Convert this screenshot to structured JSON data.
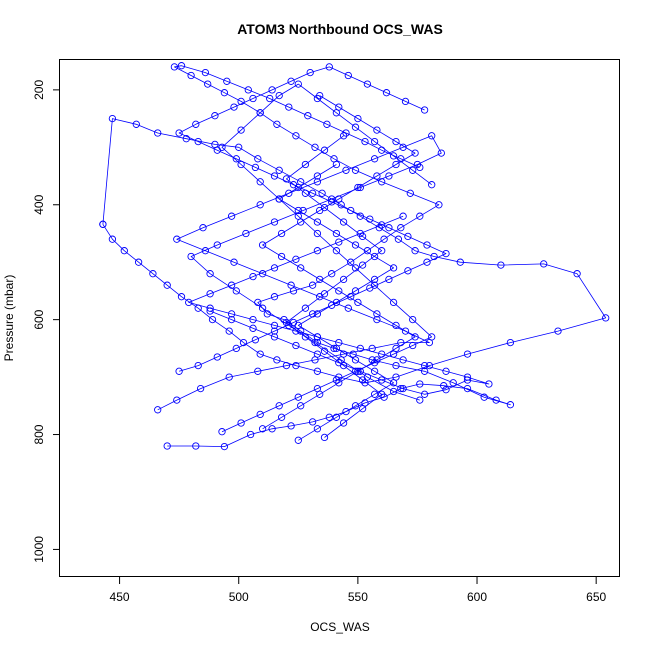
{
  "chart_data": {
    "type": "line",
    "title": "ATOM3 Northbound OCS_WAS",
    "xlabel": "OCS_WAS",
    "ylabel": "Pressure (mbar)",
    "xlim": [
      425,
      660
    ],
    "ylim": [
      1048,
      148
    ],
    "y_reversed": true,
    "x_ticks": [
      450,
      500,
      550,
      600,
      650
    ],
    "y_ticks": [
      200,
      400,
      600,
      800,
      1000
    ],
    "grid": false,
    "colors": {
      "series": "#0000ff",
      "axis": "#000000"
    },
    "series": [
      {
        "x": [
          470,
          482,
          494,
          505,
          514,
          522,
          531,
          538,
          545,
          553,
          561,
          568,
          576,
          586,
          596,
          608,
          614,
          603,
          590,
          578,
          566,
          556,
          548,
          540,
          533,
          526,
          519,
          512,
          508,
          515,
          523,
          531,
          539,
          547,
          554,
          561,
          568,
          576,
          584,
          572,
          560,
          549,
          540,
          532,
          524,
          516,
          509,
          501,
          494,
          487,
          480,
          473,
          476,
          486,
          495,
          504,
          513,
          521,
          529,
          537,
          545,
          553,
          560,
          568,
          576
        ],
        "y": [
          820,
          820,
          821,
          800,
          790,
          785,
          778,
          770,
          760,
          745,
          735,
          720,
          712,
          715,
          720,
          740,
          748,
          735,
          710,
          690,
          680,
          670,
          660,
          650,
          640,
          620,
          600,
          590,
          570,
          560,
          550,
          540,
          520,
          500,
          480,
          460,
          440,
          420,
          400,
          380,
          360,
          340,
          320,
          300,
          280,
          260,
          240,
          220,
          205,
          190,
          175,
          160,
          158,
          170,
          185,
          200,
          215,
          230,
          245,
          260,
          275,
          290,
          305,
          320,
          335
        ]
      },
      {
        "x": [
          443,
          447,
          457,
          466,
          478,
          490,
          500,
          508,
          517,
          526,
          535,
          543,
          551,
          559,
          567,
          574,
          582,
          593,
          610,
          628,
          642,
          654,
          634,
          614,
          596,
          580,
          566,
          553,
          542,
          533,
          524,
          516,
          509,
          502,
          496,
          489,
          483,
          476,
          470,
          464,
          458,
          452,
          447,
          443
        ],
        "y": [
          434,
          250,
          260,
          275,
          285,
          295,
          300,
          320,
          340,
          360,
          380,
          400,
          420,
          440,
          460,
          480,
          490,
          500,
          505,
          503,
          520,
          597,
          620,
          640,
          660,
          680,
          700,
          710,
          700,
          690,
          680,
          670,
          660,
          640,
          620,
          600,
          580,
          560,
          540,
          520,
          500,
          480,
          460,
          434
        ]
      },
      {
        "x": [
          466,
          474,
          484,
          496,
          508,
          520,
          532,
          544,
          556,
          568,
          580,
          570,
          558,
          546,
          534,
          522,
          510,
          498,
          486,
          474,
          485,
          497,
          509,
          521,
          533,
          545,
          557,
          569,
          581,
          585,
          575,
          563,
          551,
          539,
          527,
          515,
          503,
          491,
          480,
          488,
          499,
          510,
          521,
          532,
          543,
          554,
          565,
          576
        ],
        "y": [
          757,
          740,
          720,
          700,
          690,
          680,
          670,
          660,
          650,
          640,
          640,
          620,
          600,
          580,
          560,
          540,
          520,
          500,
          480,
          460,
          440,
          420,
          400,
          380,
          360,
          340,
          320,
          300,
          280,
          310,
          330,
          350,
          370,
          390,
          410,
          430,
          450,
          470,
          490,
          520,
          550,
          580,
          610,
          640,
          670,
          700,
          725,
          740
        ]
      },
      {
        "x": [
          475,
          483,
          491,
          499,
          507,
          515,
          523,
          531,
          539,
          547,
          555,
          563,
          571,
          579,
          587,
          579,
          571,
          563,
          555,
          547,
          539,
          531,
          523,
          515,
          507,
          499,
          491,
          483,
          475,
          482,
          490,
          498,
          506,
          514,
          522,
          530,
          538,
          546,
          554,
          562,
          570,
          578
        ],
        "y": [
          690,
          680,
          665,
          650,
          635,
          620,
          605,
          590,
          575,
          560,
          545,
          530,
          515,
          500,
          485,
          470,
          455,
          440,
          425,
          410,
          395,
          380,
          365,
          350,
          335,
          320,
          305,
          290,
          275,
          260,
          245,
          230,
          215,
          200,
          185,
          170,
          160,
          175,
          190,
          205,
          220,
          235
        ]
      },
      {
        "x": [
          488,
          497,
          506,
          515,
          524,
          533,
          542,
          551,
          560,
          569,
          578,
          587,
          596,
          605,
          596,
          587,
          578,
          569,
          560,
          551,
          542,
          533,
          524,
          515,
          506,
          497,
          488,
          479,
          488,
          497,
          506,
          515,
          524,
          533,
          542,
          551,
          560,
          569
        ],
        "y": [
          585,
          600,
          615,
          630,
          645,
          660,
          675,
          690,
          705,
          720,
          730,
          722,
          705,
          712,
          700,
          690,
          680,
          670,
          660,
          650,
          640,
          630,
          620,
          610,
          600,
          590,
          580,
          570,
          555,
          540,
          525,
          510,
          495,
          480,
          465,
          450,
          435,
          420
        ]
      },
      {
        "x": [
          493,
          501,
          509,
          517,
          525,
          533,
          541,
          549,
          557,
          565,
          573,
          581,
          573,
          565,
          557,
          549,
          541,
          533,
          525,
          517,
          509,
          501,
          493,
          501,
          509,
          517,
          525,
          533,
          541,
          549,
          557,
          565,
          573,
          581
        ],
        "y": [
          795,
          780,
          765,
          750,
          735,
          720,
          705,
          690,
          675,
          660,
          645,
          630,
          600,
          570,
          540,
          510,
          480,
          450,
          420,
          390,
          360,
          330,
          300,
          270,
          240,
          210,
          190,
          215,
          240,
          265,
          290,
          315,
          340,
          365
        ]
      },
      {
        "x": [
          510,
          518,
          526,
          534,
          542,
          550,
          558,
          566,
          574,
          566,
          558,
          550,
          542,
          534,
          526,
          518,
          510,
          518,
          526,
          534,
          542,
          550,
          558,
          566,
          574,
          566,
          558,
          550,
          542,
          534
        ],
        "y": [
          790,
          770,
          750,
          730,
          710,
          690,
          670,
          650,
          630,
          610,
          590,
          570,
          550,
          530,
          510,
          490,
          470,
          450,
          430,
          410,
          390,
          370,
          350,
          330,
          310,
          290,
          270,
          250,
          230,
          210
        ]
      },
      {
        "x": [
          525,
          533,
          541,
          549,
          557,
          565,
          557,
          549,
          541,
          533,
          525,
          533,
          541,
          549,
          557,
          565,
          557,
          549,
          541,
          533,
          525,
          517,
          525,
          533,
          541
        ],
        "y": [
          810,
          790,
          770,
          750,
          730,
          710,
          690,
          670,
          650,
          630,
          610,
          590,
          570,
          550,
          530,
          510,
          490,
          470,
          450,
          430,
          410,
          390,
          370,
          350,
          330
        ]
      },
      {
        "x": [
          536,
          544,
          552,
          560,
          552,
          544,
          536,
          528,
          520,
          528,
          536,
          544,
          552,
          560,
          552,
          544,
          536,
          528,
          520,
          528,
          536,
          544
        ],
        "y": [
          805,
          780,
          755,
          730,
          705,
          680,
          655,
          630,
          605,
          580,
          555,
          530,
          505,
          480,
          455,
          430,
          405,
          380,
          355,
          330,
          305,
          280
        ]
      }
    ]
  }
}
